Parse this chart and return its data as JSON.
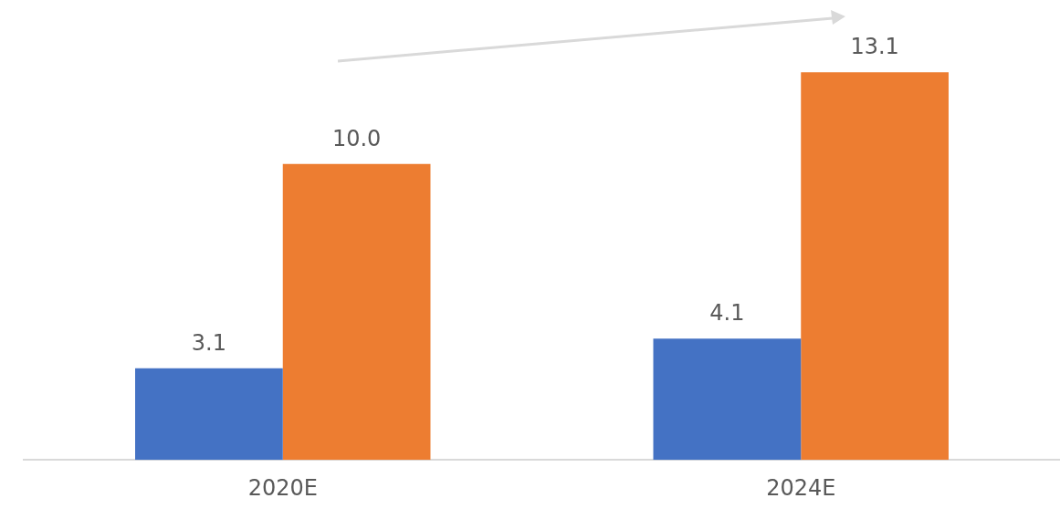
{
  "chart_data": {
    "type": "bar",
    "categories": [
      "2020E",
      "2024E"
    ],
    "series": [
      {
        "color": "#4472c4",
        "values": [
          3.1,
          4.1
        ],
        "value_labels": [
          "3.1",
          "4.1"
        ]
      },
      {
        "color": "#ed7d31",
        "values": [
          10.0,
          13.1
        ],
        "value_labels": [
          "10.0",
          "13.1"
        ]
      }
    ],
    "tick_labels": "x",
    "grid": false,
    "legend": false
  }
}
